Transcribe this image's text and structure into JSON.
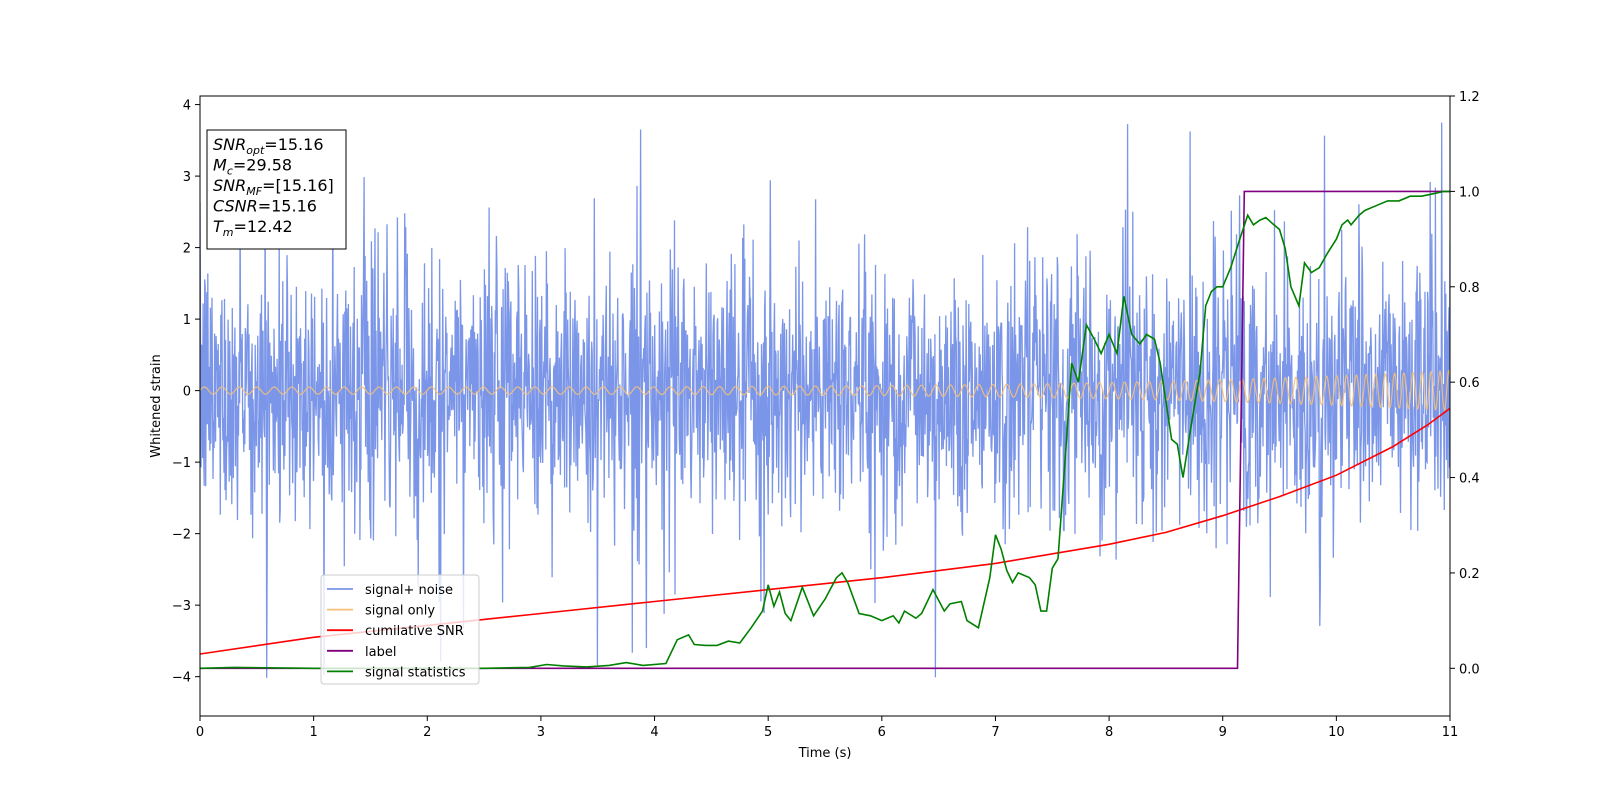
{
  "chart_data": {
    "type": "line",
    "xlabel": "Time (s)",
    "ylabel": "Whitened strain",
    "xlim": [
      0,
      11
    ],
    "ylim_left": [
      -4.55,
      4.12
    ],
    "ylim_right": [
      -0.1,
      1.2
    ],
    "x_ticks": [
      0,
      1,
      2,
      3,
      4,
      5,
      6,
      7,
      8,
      9,
      10,
      11
    ],
    "y_left_ticks": [
      -4,
      -3,
      -2,
      -1,
      0,
      1,
      2,
      3,
      4
    ],
    "y_left_tick_labels": [
      "−4",
      "−3",
      "−2",
      "−1",
      "0",
      "1",
      "2",
      "3",
      "4"
    ],
    "y_right_ticks": [
      0.0,
      0.2,
      0.4,
      0.6,
      0.8,
      1.0,
      1.2
    ],
    "y_right_tick_labels": [
      "0.0",
      "0.2",
      "0.4",
      "0.6",
      "0.8",
      "1.0",
      "1.2"
    ],
    "legend_position": "lower-left",
    "annotation": {
      "lines": [
        {
          "italic": "SNR",
          "sub": "opt",
          "rest": "=15.16"
        },
        {
          "italic": "M",
          "sub": "c",
          "rest": "=29.58"
        },
        {
          "italic": "SNR",
          "sub": "MF",
          "rest": "=[15.16]"
        },
        {
          "italic": "CSNR",
          "sub": "",
          "rest": "=15.16"
        },
        {
          "italic": "T",
          "sub": "m",
          "rest": "=12.42"
        }
      ]
    },
    "series": [
      {
        "name": "signal+ noise",
        "axis": "left",
        "color": "#7b96e8",
        "kind": "noise",
        "description_values": {
          "mean": 0.0,
          "typical_min": -2.2,
          "typical_max": 2.4,
          "extreme_min": -4.15,
          "extreme_max": 3.75
        }
      },
      {
        "name": "signal only",
        "axis": "left",
        "color": "#f5c07a",
        "kind": "chirp",
        "amplitude_start": 0.05,
        "amplitude_end": 0.28,
        "cycles_per_second_start": 6.5,
        "cycles_per_second_end": 13
      },
      {
        "name": "cumilative SNR",
        "axis": "right",
        "color": "#ff0000",
        "x": [
          0,
          1,
          2,
          3,
          4,
          5,
          6,
          7,
          8,
          8.5,
          9,
          9.5,
          10,
          10.5,
          10.8,
          11
        ],
        "y": [
          0.03,
          0.065,
          0.09,
          0.115,
          0.14,
          0.165,
          0.19,
          0.22,
          0.26,
          0.285,
          0.32,
          0.36,
          0.405,
          0.465,
          0.51,
          0.545
        ]
      },
      {
        "name": "label",
        "axis": "right",
        "color": "#800080",
        "x": [
          0,
          9.13,
          9.19,
          11
        ],
        "y": [
          0.0,
          0.0,
          1.0,
          1.0
        ]
      },
      {
        "name": "signal statistics",
        "axis": "right",
        "color": "#008000",
        "x": [
          0,
          0.3,
          1,
          2,
          2.5,
          2.9,
          3.05,
          3.2,
          3.4,
          3.6,
          3.75,
          3.9,
          4.1,
          4.2,
          4.3,
          4.35,
          4.45,
          4.55,
          4.65,
          4.75,
          4.85,
          4.95,
          5.0,
          5.05,
          5.1,
          5.15,
          5.2,
          5.3,
          5.4,
          5.5,
          5.6,
          5.65,
          5.7,
          5.8,
          5.9,
          6.0,
          6.1,
          6.15,
          6.2,
          6.3,
          6.35,
          6.45,
          6.55,
          6.6,
          6.7,
          6.75,
          6.85,
          6.95,
          7.0,
          7.05,
          7.1,
          7.15,
          7.2,
          7.3,
          7.35,
          7.4,
          7.45,
          7.5,
          7.55,
          7.62,
          7.67,
          7.73,
          7.8,
          7.87,
          7.93,
          8.0,
          8.07,
          8.13,
          8.2,
          8.27,
          8.33,
          8.4,
          8.45,
          8.5,
          8.55,
          8.6,
          8.65,
          8.73,
          8.8,
          8.85,
          8.9,
          8.95,
          9.0,
          9.07,
          9.15,
          9.22,
          9.27,
          9.33,
          9.38,
          9.45,
          9.5,
          9.55,
          9.6,
          9.67,
          9.72,
          9.78,
          9.85,
          9.92,
          10.0,
          10.05,
          10.1,
          10.13,
          10.2,
          10.25,
          10.35,
          10.45,
          10.55,
          10.65,
          10.75,
          10.85,
          10.95,
          11.0
        ],
        "y": [
          0.0,
          0.002,
          0.0,
          0.0,
          0.0,
          0.002,
          0.008,
          0.005,
          0.003,
          0.006,
          0.012,
          0.006,
          0.01,
          0.06,
          0.07,
          0.05,
          0.048,
          0.048,
          0.057,
          0.053,
          0.085,
          0.12,
          0.175,
          0.13,
          0.16,
          0.115,
          0.1,
          0.17,
          0.11,
          0.145,
          0.19,
          0.2,
          0.18,
          0.115,
          0.11,
          0.1,
          0.11,
          0.095,
          0.12,
          0.105,
          0.115,
          0.165,
          0.12,
          0.135,
          0.14,
          0.1,
          0.085,
          0.19,
          0.28,
          0.25,
          0.205,
          0.18,
          0.2,
          0.19,
          0.175,
          0.12,
          0.12,
          0.21,
          0.23,
          0.46,
          0.64,
          0.6,
          0.72,
          0.69,
          0.66,
          0.7,
          0.66,
          0.78,
          0.7,
          0.68,
          0.7,
          0.69,
          0.64,
          0.56,
          0.48,
          0.47,
          0.4,
          0.52,
          0.62,
          0.76,
          0.79,
          0.8,
          0.8,
          0.84,
          0.9,
          0.95,
          0.93,
          0.94,
          0.945,
          0.93,
          0.92,
          0.88,
          0.8,
          0.76,
          0.85,
          0.83,
          0.84,
          0.87,
          0.9,
          0.93,
          0.94,
          0.93,
          0.95,
          0.96,
          0.97,
          0.98,
          0.98,
          0.99,
          0.99,
          0.995,
          1.0,
          1.0
        ]
      }
    ]
  }
}
